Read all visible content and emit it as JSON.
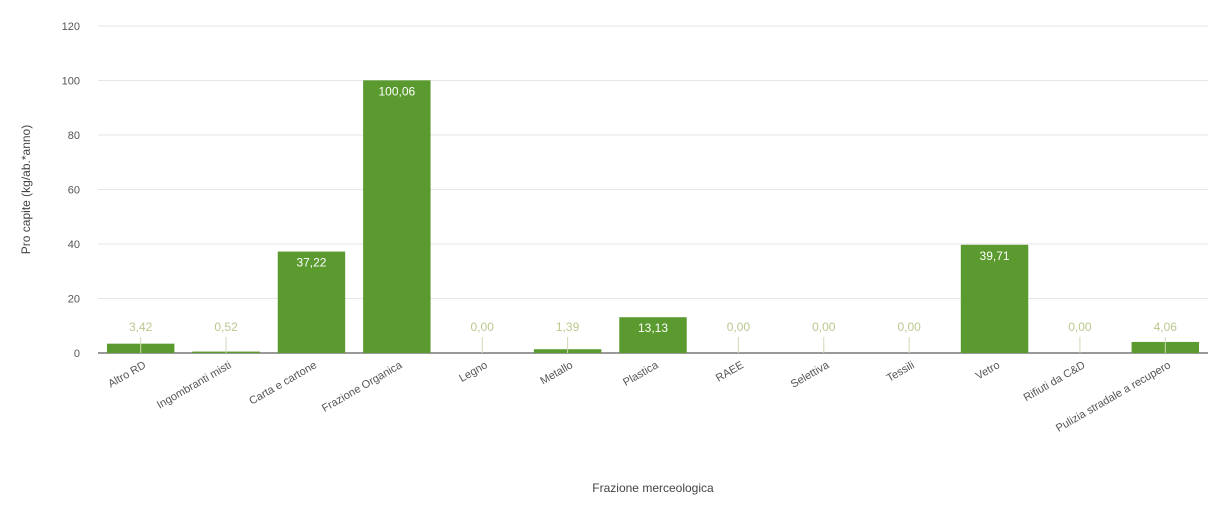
{
  "chart_data": {
    "type": "bar",
    "title": "",
    "xlabel": "Frazione merceologica",
    "ylabel": "Pro capite (kg/ab.*anno)",
    "ylim": [
      0,
      120
    ],
    "yticks": [
      0,
      20,
      40,
      60,
      80,
      100,
      120
    ],
    "grid": true,
    "legend": "none",
    "bar_color": "#5a9a2f",
    "categories": [
      "Altro RD",
      "Ingombranti misti",
      "Carta e cartone",
      "Frazione Organica",
      "Legno",
      "Metallo",
      "Plastica",
      "RAEE",
      "Selettiva",
      "Tessili",
      "Vetro",
      "Rifiuti da C&D",
      "Pulizia stradale a recupero"
    ],
    "values": [
      3.42,
      0.52,
      37.22,
      100.06,
      0.0,
      1.39,
      13.13,
      0.0,
      0.0,
      0.0,
      39.71,
      0.0,
      4.06
    ],
    "data_labels": [
      "3,42",
      "0,52",
      "37,22",
      "100,06",
      "0,00",
      "1,39",
      "13,13",
      "0,00",
      "0,00",
      "0,00",
      "39,71",
      "0,00",
      "4,06"
    ]
  }
}
